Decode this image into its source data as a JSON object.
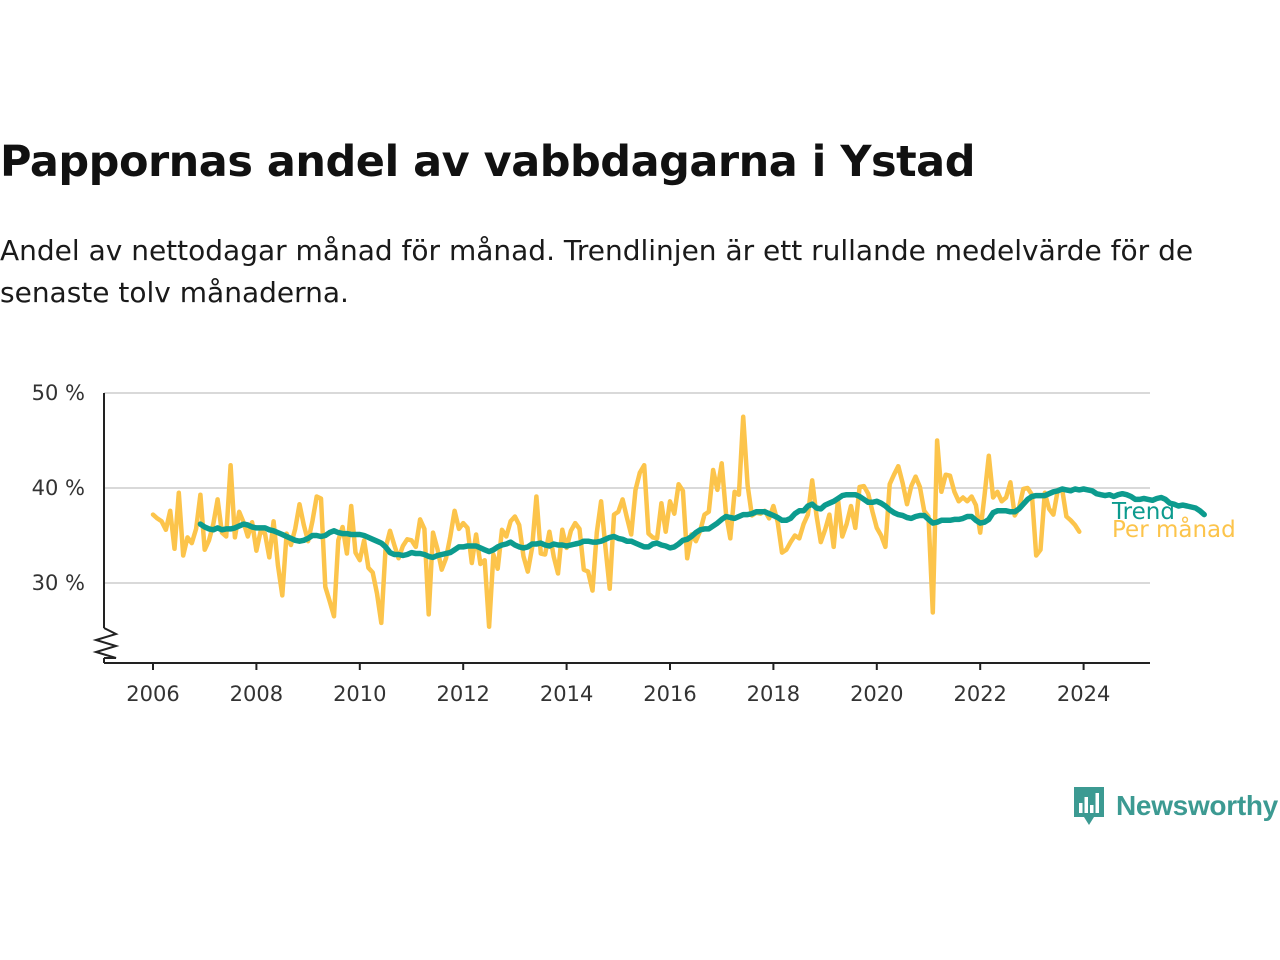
{
  "title": "Pappornas andel av vabbdagarna i Ystad",
  "subtitle": "Andel av nettodagar månad för månad. Trendlinjen är ett rullande medelvärde för de senaste tolv månaderna.",
  "brand": {
    "name": "Newsworthy",
    "icon": "bar-chart-icon",
    "color": "#3c9a92"
  },
  "colors": {
    "monthly": "#fcc44b",
    "trend": "#0c9b8e",
    "grid": "#d9d9d9",
    "axis": "#222222"
  },
  "chart_data": {
    "type": "line",
    "title": "Pappornas andel av vabbdagarna i Ystad",
    "xlabel": "",
    "ylabel": "",
    "y_unit": "%",
    "x_ticks": [
      "2006",
      "2008",
      "2010",
      "2012",
      "2014",
      "2016",
      "2018",
      "2020",
      "2022",
      "2024"
    ],
    "y_ticks": [
      {
        "value": 30,
        "label": "30 %"
      },
      {
        "value": 40,
        "label": "40 %"
      },
      {
        "value": 50,
        "label": "50 %"
      }
    ],
    "xlim": [
      "2005-09",
      "2025-01"
    ],
    "ylim": [
      22,
      50
    ],
    "y_axis_break": true,
    "grid": true,
    "legend": "direct labels at line ends (right)",
    "x_start": "2006-01",
    "frequency": "monthly",
    "series": [
      {
        "name": "Per månad",
        "values": [
          37.2,
          36.8,
          36.5,
          35.6,
          37.6,
          33.6,
          39.5,
          32.9,
          34.8,
          34.2,
          35.7,
          39.3,
          33.5,
          34.5,
          36.2,
          38.8,
          35.3,
          34.9,
          42.4,
          34.8,
          37.5,
          36.4,
          34.9,
          36.4,
          33.4,
          35.5,
          35.2,
          32.7,
          36.5,
          31.9,
          28.7,
          35.2,
          34.0,
          35.7,
          38.3,
          36.1,
          34.4,
          36.5,
          39.1,
          38.9,
          29.6,
          28.1,
          26.5,
          34.5,
          35.9,
          33.1,
          38.1,
          33.2,
          32.4,
          34.5,
          31.6,
          31.1,
          28.9,
          25.8,
          33.7,
          35.5,
          34.0,
          32.6,
          33.9,
          34.6,
          34.5,
          33.8,
          36.7,
          35.7,
          26.7,
          35.3,
          33.6,
          31.4,
          32.6,
          34.9,
          37.6,
          35.7,
          36.3,
          35.8,
          32.1,
          35.1,
          32.0,
          32.4,
          25.4,
          33.0,
          31.5,
          35.6,
          34.9,
          36.5,
          37.0,
          36.1,
          32.8,
          31.2,
          33.7,
          39.1,
          33.1,
          33.0,
          35.4,
          32.8,
          31.0,
          35.6,
          33.7,
          35.5,
          36.3,
          35.7,
          31.4,
          31.2,
          29.2,
          35.3,
          38.6,
          33.8,
          29.4,
          37.2,
          37.5,
          38.8,
          36.9,
          35.1,
          39.8,
          41.6,
          42.4,
          35.2,
          34.8,
          34.7,
          38.4,
          35.4,
          38.6,
          37.3,
          40.4,
          39.7,
          32.6,
          35.1,
          34.4,
          35.5,
          37.2,
          37.5,
          41.9,
          39.8,
          42.6,
          37.3,
          34.7,
          39.6,
          39.3,
          47.5,
          40.3,
          37.1,
          37.4,
          37.3,
          37.6,
          36.8,
          38.1,
          36.4,
          33.2,
          33.5,
          34.3,
          35.0,
          34.7,
          36.2,
          37.2,
          40.8,
          37.1,
          34.3,
          35.6,
          37.2,
          33.8,
          38.8,
          34.9,
          36.2,
          38.1,
          35.8,
          40.1,
          40.2,
          39.4,
          37.5,
          35.8,
          35.0,
          33.8,
          40.4,
          41.4,
          42.3,
          40.5,
          38.3,
          40.2,
          41.2,
          40.1,
          37.6,
          37.0,
          26.9,
          45.0,
          39.6,
          41.4,
          41.3,
          39.6,
          38.6,
          39.0,
          38.6,
          39.1,
          38.2,
          35.3,
          39.2,
          43.4,
          39.0,
          39.6,
          38.6,
          39.0,
          40.6,
          37.1,
          37.9,
          39.9,
          40.0,
          39.3,
          32.9,
          33.5,
          39.5,
          37.8,
          37.2,
          39.8,
          39.9,
          37.0,
          36.6,
          36.1,
          35.4
        ]
      },
      {
        "name": "Trend",
        "values": [
          null,
          null,
          null,
          null,
          null,
          null,
          null,
          null,
          null,
          null,
          null,
          36.2,
          35.9,
          35.7,
          35.6,
          35.8,
          35.6,
          35.7,
          35.7,
          35.8,
          36.0,
          36.2,
          36.1,
          35.9,
          35.8,
          35.8,
          35.8,
          35.6,
          35.5,
          35.3,
          35.1,
          34.9,
          34.7,
          34.5,
          34.4,
          34.5,
          34.7,
          35.0,
          35.0,
          34.9,
          35.0,
          35.3,
          35.5,
          35.3,
          35.2,
          35.2,
          35.1,
          35.1,
          35.1,
          35.0,
          34.8,
          34.6,
          34.4,
          34.2,
          33.8,
          33.2,
          33.0,
          33.0,
          32.9,
          33.0,
          33.2,
          33.1,
          33.1,
          33.0,
          32.8,
          32.7,
          32.9,
          33.0,
          33.1,
          33.2,
          33.5,
          33.8,
          33.8,
          33.9,
          33.9,
          33.9,
          33.7,
          33.5,
          33.3,
          33.5,
          33.8,
          34.0,
          34.1,
          34.3,
          34.0,
          33.8,
          33.7,
          33.8,
          34.1,
          34.1,
          34.2,
          34.0,
          33.9,
          34.1,
          34.0,
          34.0,
          33.9,
          34.0,
          34.1,
          34.2,
          34.4,
          34.4,
          34.3,
          34.3,
          34.4,
          34.6,
          34.8,
          34.9,
          34.7,
          34.6,
          34.4,
          34.4,
          34.2,
          34.0,
          33.8,
          33.8,
          34.1,
          34.2,
          34.0,
          33.9,
          33.7,
          33.8,
          34.1,
          34.5,
          34.6,
          34.9,
          35.3,
          35.6,
          35.7,
          35.7,
          36.0,
          36.3,
          36.7,
          37.0,
          36.9,
          36.8,
          37.0,
          37.2,
          37.2,
          37.3,
          37.5,
          37.5,
          37.5,
          37.3,
          37.1,
          36.9,
          36.6,
          36.6,
          36.8,
          37.3,
          37.6,
          37.6,
          38.1,
          38.3,
          37.9,
          37.8,
          38.2,
          38.4,
          38.6,
          38.9,
          39.2,
          39.3,
          39.3,
          39.3,
          39.1,
          38.8,
          38.5,
          38.5,
          38.6,
          38.4,
          38.1,
          37.7,
          37.4,
          37.2,
          37.1,
          36.9,
          36.8,
          37.0,
          37.1,
          37.1,
          36.7,
          36.3,
          36.4,
          36.6,
          36.6,
          36.6,
          36.7,
          36.7,
          36.8,
          37.0,
          37.0,
          36.6,
          36.3,
          36.4,
          36.7,
          37.4,
          37.6,
          37.6,
          37.6,
          37.5,
          37.5,
          37.8,
          38.3,
          38.8,
          39.1,
          39.2,
          39.2,
          39.2,
          39.4,
          39.6,
          39.7,
          39.9,
          39.8,
          39.7,
          39.9,
          39.8,
          39.9,
          39.8,
          39.7,
          39.4,
          39.3,
          39.2,
          39.3,
          39.1,
          39.3,
          39.4,
          39.3,
          39.1,
          38.8,
          38.8,
          38.9,
          38.8,
          38.7,
          38.9,
          39.0,
          38.8,
          38.4,
          38.3,
          38.1,
          38.2,
          38.1,
          38.0,
          37.9,
          37.6,
          37.2
        ]
      }
    ]
  }
}
